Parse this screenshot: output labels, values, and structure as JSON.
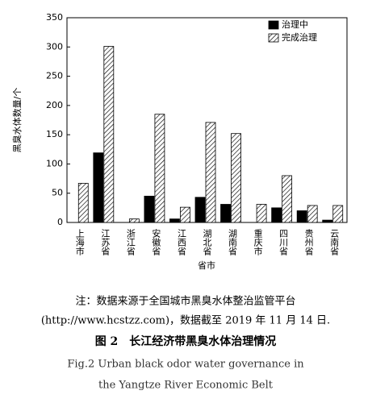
{
  "chart_data": {
    "type": "bar",
    "y_label": "黑臭水体数量/个",
    "x_label": "省市",
    "categories": [
      "上海市",
      "江苏省",
      "浙江省",
      "安徽省",
      "江西省",
      "湖北省",
      "湖南省",
      "重庆市",
      "四川省",
      "贵州省",
      "云南省"
    ],
    "series": [
      {
        "name": "治理中",
        "color": "#000000",
        "hatch": false,
        "values": [
          0,
          119,
          0,
          45,
          6,
          43,
          31,
          0,
          25,
          20,
          4
        ]
      },
      {
        "name": "完成治理",
        "color": "#000000",
        "hatch": true,
        "values": [
          67,
          301,
          6,
          185,
          26,
          171,
          152,
          31,
          80,
          29,
          29
        ]
      }
    ],
    "ylim": [
      0,
      350
    ],
    "yticks": [
      0,
      50,
      100,
      150,
      200,
      250,
      300,
      350
    ],
    "legend": "top-right",
    "note": [
      "注：数据来源于全国城市黑臭水体整治监管平台",
      "(http://www.hcstzz.com)，数据截至 2019 年 11 月 14 日."
    ],
    "caption": "图 2　长江经济带黑臭水体治理情况",
    "caption_en": [
      "Fig.2 Urban black odor water governance in",
      "the Yangtze River Economic Belt"
    ]
  }
}
